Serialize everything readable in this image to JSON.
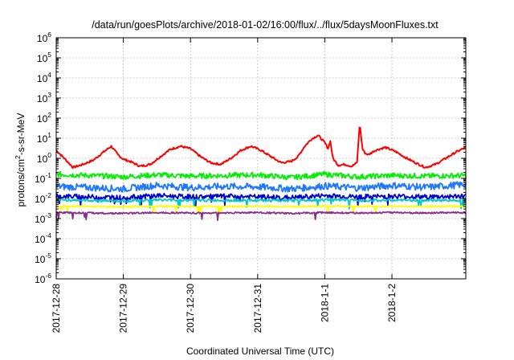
{
  "chart_data": {
    "type": "line",
    "title": "/data/run/goesPlots/archive/2018-01-02/16:00/flux/../flux/5daysMoonFluxes.txt",
    "xlabel": "Coordinated Universal Time (UTC)",
    "ylabel": {
      "base": "protons/cm",
      "sup": "2",
      "rest": "-s-sr-MeV"
    },
    "xlim": [
      0,
      6.1
    ],
    "x_ticks": [
      {
        "label": "2017-12-28",
        "x": 0
      },
      {
        "label": "2017-12-29",
        "x": 1
      },
      {
        "label": "2017-12-30",
        "x": 2
      },
      {
        "label": "2017-12-31",
        "x": 3
      },
      {
        "label": "2018-1-1",
        "x": 4
      },
      {
        "label": "2018-1-2",
        "x": 5
      }
    ],
    "y_scale": "log",
    "ylim": [
      1e-06,
      1000000.0
    ],
    "y_ticks": [
      {
        "base": "10",
        "exp": "6",
        "v": 6
      },
      {
        "base": "10",
        "exp": "5",
        "v": 5
      },
      {
        "base": "10",
        "exp": "4",
        "v": 4
      },
      {
        "base": "10",
        "exp": "3",
        "v": 3
      },
      {
        "base": "10",
        "exp": "2",
        "v": 2
      },
      {
        "base": "10",
        "exp": "1",
        "v": 1
      },
      {
        "base": "10",
        "exp": "0",
        "v": 0
      },
      {
        "base": "10",
        "exp": "-1",
        "v": -1
      },
      {
        "base": "10",
        "exp": "-2",
        "v": -2
      },
      {
        "base": "10",
        "exp": "-3",
        "v": -3
      },
      {
        "base": "10",
        "exp": "-4",
        "v": -4
      },
      {
        "base": "10",
        "exp": "-5",
        "v": -5
      },
      {
        "base": "10",
        "exp": "-6",
        "v": -6
      }
    ],
    "grid": true,
    "series": [
      {
        "color": "#ff0000",
        "x": [
          0,
          0.12,
          0.25,
          0.4,
          0.55,
          0.7,
          0.82,
          0.92,
          1.0,
          1.1,
          1.25,
          1.4,
          1.55,
          1.7,
          1.85,
          2.0,
          2.15,
          2.3,
          2.45,
          2.6,
          2.75,
          2.9,
          3.05,
          3.2,
          3.35,
          3.5,
          3.6,
          3.7,
          3.8,
          3.9,
          4.0,
          4.05,
          4.08,
          4.12,
          4.2,
          4.3,
          4.4,
          4.48,
          4.52,
          4.56,
          4.6,
          4.65,
          4.75,
          4.9,
          5.05,
          5.2,
          5.35,
          5.5,
          5.65,
          5.8,
          5.95,
          6.1
        ],
        "y": [
          2.5,
          1.0,
          0.35,
          0.5,
          0.8,
          2.0,
          4.0,
          1.5,
          0.9,
          0.7,
          0.4,
          0.5,
          1.2,
          2.8,
          4.0,
          3.0,
          1.2,
          0.6,
          0.5,
          1.0,
          2.5,
          4.0,
          2.5,
          1.2,
          0.6,
          0.7,
          1.2,
          4.0,
          9.0,
          14.0,
          6.0,
          3.0,
          8.0,
          1.0,
          0.45,
          0.5,
          0.4,
          0.6,
          55.0,
          3.0,
          1.8,
          1.5,
          2.5,
          3.5,
          2.2,
          1.1,
          0.6,
          0.35,
          0.5,
          1.0,
          2.0,
          3.5
        ]
      },
      {
        "color": "#00ee00",
        "x": [
          0,
          0.5,
          1.0,
          1.5,
          2.0,
          2.5,
          3.0,
          3.5,
          4.0,
          4.5,
          5.0,
          5.5,
          6.1
        ],
        "y": [
          0.16,
          0.14,
          0.12,
          0.15,
          0.13,
          0.14,
          0.15,
          0.11,
          0.16,
          0.12,
          0.14,
          0.13,
          0.14
        ]
      },
      {
        "color": "#1e78ff",
        "x": [
          0,
          0.5,
          1.0,
          1.5,
          2.0,
          2.5,
          3.0,
          3.5,
          4.0,
          4.5,
          5.0,
          5.5,
          6.1
        ],
        "y": [
          0.04,
          0.035,
          0.03,
          0.045,
          0.035,
          0.04,
          0.038,
          0.03,
          0.042,
          0.033,
          0.045,
          0.036,
          0.05
        ]
      },
      {
        "color": "#0000cc",
        "x": [
          0,
          0.5,
          1.0,
          1.5,
          2.0,
          2.5,
          3.0,
          3.5,
          4.0,
          4.5,
          5.0,
          5.5,
          6.1
        ],
        "y": [
          0.013,
          0.012,
          0.011,
          0.014,
          0.012,
          0.013,
          0.012,
          0.011,
          0.014,
          0.012,
          0.013,
          0.012,
          0.013
        ]
      },
      {
        "color": "#00c8c8",
        "x": [
          0,
          0.5,
          1.0,
          1.5,
          2.0,
          2.5,
          3.0,
          3.5,
          4.0,
          4.5,
          5.0,
          5.5,
          6.1
        ],
        "y": [
          0.0085,
          0.008,
          0.0075,
          0.0085,
          0.008,
          0.0082,
          0.008,
          0.0078,
          0.0085,
          0.008,
          0.0082,
          0.008,
          0.0082
        ]
      },
      {
        "color": "#ffff00",
        "x": [
          0,
          0.5,
          1.0,
          1.5,
          2.0,
          2.5,
          3.0,
          3.5,
          4.0,
          4.5,
          5.0,
          5.5,
          6.1
        ],
        "y": [
          0.0042,
          0.004,
          0.0038,
          0.0041,
          0.004,
          0.004,
          0.0041,
          0.0039,
          0.0042,
          0.004,
          0.0041,
          0.004,
          0.0041
        ]
      },
      {
        "color": "#8b2c8b",
        "x": [
          0,
          0.5,
          1.0,
          1.5,
          2.0,
          2.5,
          3.0,
          3.5,
          4.0,
          4.5,
          5.0,
          5.5,
          6.1
        ],
        "y": [
          0.002,
          0.0019,
          0.0018,
          0.002,
          0.0019,
          0.0019,
          0.002,
          0.0018,
          0.002,
          0.0019,
          0.002,
          0.0019,
          0.002
        ]
      }
    ]
  }
}
